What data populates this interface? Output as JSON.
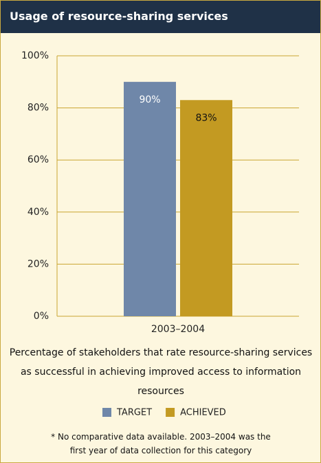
{
  "chart_data": {
    "type": "bar",
    "title": "Usage of resource-sharing services",
    "categories": [
      "2003–2004"
    ],
    "series": [
      {
        "name": "TARGET",
        "color": "#6f87a9",
        "values": [
          90
        ],
        "value_labels": [
          "90%"
        ]
      },
      {
        "name": "ACHIEVED",
        "color": "#c39a22",
        "values": [
          83
        ],
        "value_labels": [
          "83%"
        ]
      }
    ],
    "ylim": [
      0,
      100
    ],
    "yticks": [
      {
        "value": 0,
        "label": "0%"
      },
      {
        "value": 20,
        "label": "20%"
      },
      {
        "value": 40,
        "label": "40%"
      },
      {
        "value": 60,
        "label": "60%"
      },
      {
        "value": 80,
        "label": "80%"
      },
      {
        "value": 100,
        "label": "100%"
      }
    ],
    "grid": true,
    "caption": "Percentage of stakeholders that rate resource-sharing services as successful in achieving improved access to information resources",
    "footnote": "* No comparative data available. 2003–2004 was the first year of data collection for this category"
  }
}
